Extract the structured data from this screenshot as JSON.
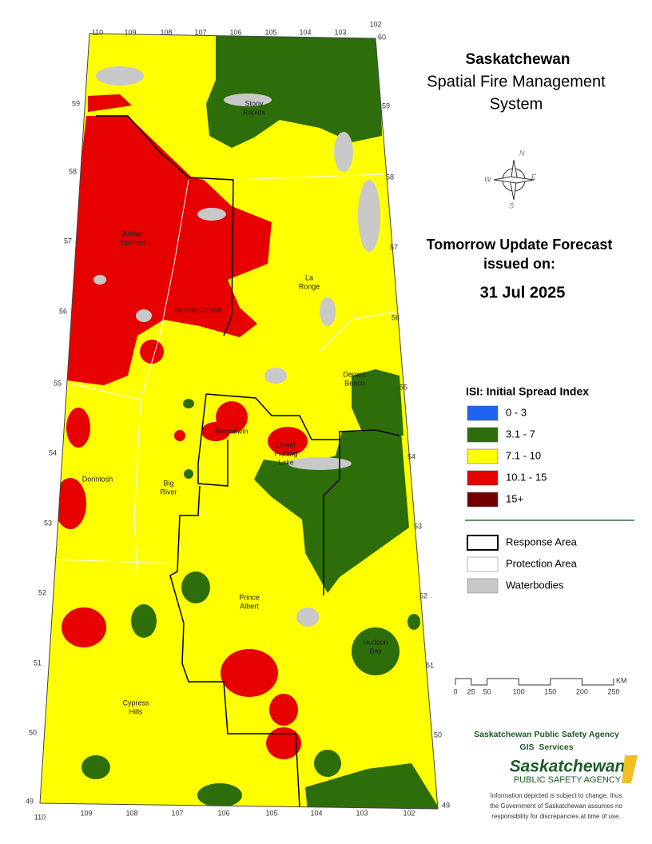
{
  "header": {
    "title": "Saskatchewan",
    "subtitle_lines": [
      "Spatial Fire Management",
      "System"
    ]
  },
  "compass": {
    "letters": [
      "N",
      "E",
      "S",
      "W"
    ]
  },
  "forecast": {
    "heading_lines": [
      "Tomorrow Update Forecast",
      "issued on:"
    ],
    "date": "31 Jul 2025"
  },
  "legend": {
    "title": "ISI: Initial Spread Index",
    "classes": [
      {
        "label": "0 - 3",
        "color": "#1e64f0"
      },
      {
        "label": "3.1 - 7",
        "color": "#2d6e0a"
      },
      {
        "label": "7.1 - 10",
        "color": "#ffff00"
      },
      {
        "label": "10.1 - 15",
        "color": "#e60000"
      },
      {
        "label": "15+",
        "color": "#730000"
      }
    ]
  },
  "boundaries": {
    "items": [
      {
        "label": "Response Area",
        "color": "#000000"
      },
      {
        "label": "Protection Area",
        "color": "#ffffff"
      },
      {
        "label": "Waterbodies",
        "color": "#c8c8c8"
      }
    ]
  },
  "scale": {
    "labels": [
      0,
      25,
      50,
      100,
      150,
      200,
      250
    ],
    "unit": "KM"
  },
  "places": [
    [
      "Stony",
      "Rapids"
    ],
    [
      "Buffalo",
      "Narrows"
    ],
    [
      "Ile-a-la-Crosse"
    ],
    [
      "La",
      "Ronge"
    ],
    [
      "Denare",
      "Beach"
    ],
    [
      "Weyakwin"
    ],
    [
      "Lower",
      "Fishing",
      "Lake"
    ],
    [
      "Dorintosh"
    ],
    [
      "Big",
      "River"
    ],
    [
      "Prince",
      "Albert"
    ],
    [
      "Hudson",
      "Bay"
    ],
    [
      "Cypress",
      "Hills"
    ]
  ],
  "longitudes_top": [
    110,
    109,
    108,
    107,
    106,
    105,
    104,
    103,
    102
  ],
  "latitude_top_right": 60,
  "longitudes_bottom": [
    110,
    109,
    108,
    107,
    106,
    105,
    104,
    103,
    102
  ],
  "latitudes_left": [
    59,
    58,
    57,
    56,
    55,
    54,
    53,
    52,
    51,
    50,
    49
  ],
  "latitudes_right": [
    59,
    58,
    57,
    56,
    55,
    54,
    53,
    52,
    51,
    50,
    49
  ],
  "credits": {
    "agency": "Saskatchewan Public Safety Agency",
    "unit": "GIS  Services",
    "logo_name": "Saskatchewan",
    "logo_tagline": "PUBLIC SAFETY AGENCY",
    "disclaimer_lines": [
      "Information depicted is subject to change, thus",
      "the Government of Saskatchewan assumes no",
      "responsibility for discrepancies at time of use."
    ]
  }
}
